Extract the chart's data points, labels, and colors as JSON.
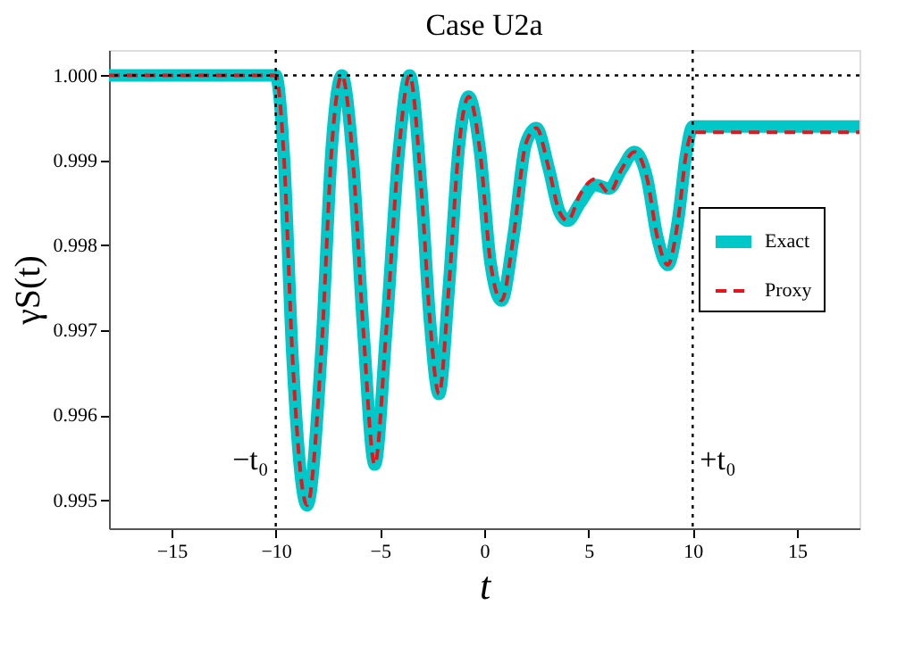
{
  "chart_data": {
    "type": "line",
    "title": "Case U2a",
    "xlabel": "t",
    "ylabel": "γS(t)",
    "x": [
      -18,
      -10,
      -9.6,
      -9.2,
      -8.5,
      -7.8,
      -7.3,
      -6.83,
      -6.3,
      -5.8,
      -5.25,
      -4.7,
      -4.1,
      -3.58,
      -3.0,
      -2.6,
      -2.17,
      -1.7,
      -1.2,
      -0.75,
      -0.2,
      0.3,
      0.83,
      1.4,
      2.0,
      2.5,
      3.1,
      3.6,
      4.0,
      4.6,
      5.3,
      6.0,
      6.6,
      7.2,
      7.8,
      8.3,
      8.8,
      9.3,
      9.7,
      10,
      18
    ],
    "series": [
      {
        "name": "Exact",
        "color": "#00c8c8",
        "line_style": "solid",
        "values": [
          1.0,
          1.0,
          0.999,
          0.9967,
          0.99494,
          0.9968,
          0.9992,
          1.0,
          0.999,
          0.997,
          0.99542,
          0.997,
          0.9991,
          1.0,
          0.9986,
          0.9971,
          0.99625,
          0.9975,
          0.9992,
          0.99975,
          0.9991,
          0.9978,
          0.99735,
          0.9981,
          0.9992,
          0.99938,
          0.9989,
          0.9984,
          0.99829,
          0.9985,
          0.99871,
          0.99867,
          0.9989,
          0.9991,
          0.9988,
          0.9981,
          0.99777,
          0.9983,
          0.9991,
          0.9994,
          0.9994
        ]
      },
      {
        "name": "Proxy",
        "color": "#e8141a",
        "line_style": "dashed",
        "values": [
          1.0,
          1.0,
          0.999,
          0.9967,
          0.99494,
          0.9968,
          0.9992,
          1.0,
          0.999,
          0.997,
          0.99542,
          0.997,
          0.9991,
          1.0,
          0.9986,
          0.9971,
          0.99625,
          0.9975,
          0.9992,
          0.99975,
          0.9991,
          0.9978,
          0.99735,
          0.9981,
          0.9992,
          0.99938,
          0.9989,
          0.9984,
          0.99829,
          0.9986,
          0.99878,
          0.99862,
          0.9989,
          0.9991,
          0.9988,
          0.9981,
          0.99777,
          0.9983,
          0.9991,
          0.99933,
          0.99933
        ]
      }
    ],
    "xlim": [
      -18,
      18
    ],
    "xticks": [
      -15,
      -10,
      -5,
      0,
      5,
      10,
      15
    ],
    "ylim": [
      0.99467,
      1.0003
    ],
    "yticks": [
      0.995,
      0.996,
      0.997,
      0.998,
      0.999,
      {
        "value": 1.0,
        "label": "1.000"
      }
    ],
    "ref_lines": [
      {
        "axis": "x",
        "value": -10,
        "label": "−t₀",
        "line_style": "dotted"
      },
      {
        "axis": "x",
        "value": 10,
        "label": "+t₀",
        "line_style": "dotted"
      },
      {
        "axis": "y",
        "value": 1.0,
        "line_style": "dotted"
      }
    ],
    "grid": false,
    "legend": "right",
    "marker": "none"
  }
}
